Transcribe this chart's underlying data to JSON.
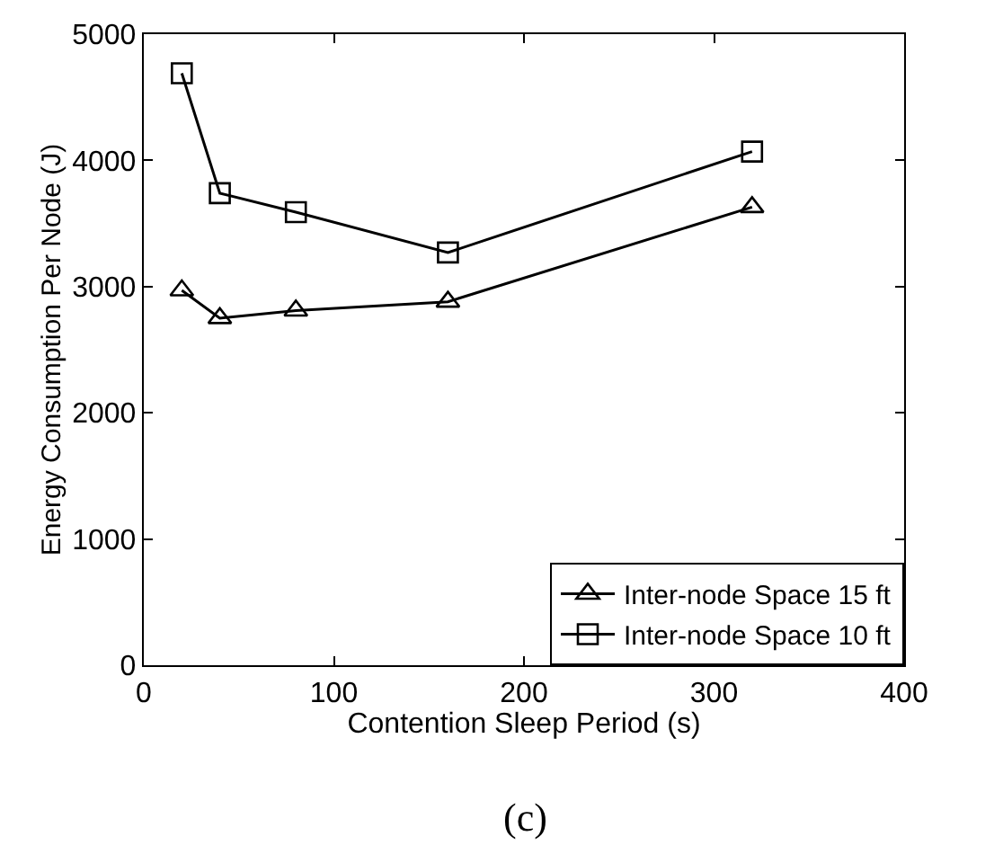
{
  "chart_data": {
    "type": "line",
    "xlabel": "Contention Sleep Period (s)",
    "ylabel": "Energy Consumption Per Node (J)",
    "x": [
      20,
      40,
      80,
      160,
      320
    ],
    "series": [
      {
        "name": "Inter-node Space 15 ft",
        "color": "#000000",
        "marker": "triangle",
        "values": [
          2970,
          2750,
          2810,
          2880,
          3630
        ]
      },
      {
        "name": "Inter-node Space 10 ft",
        "color": "#000000",
        "marker": "square",
        "values": [
          4690,
          3740,
          3590,
          3270,
          4070
        ]
      }
    ],
    "xlim": [
      0,
      400
    ],
    "xticks": [
      0,
      100,
      200,
      300,
      400
    ],
    "ylim": [
      0,
      5000
    ],
    "yticks": [
      0,
      1000,
      2000,
      3000,
      4000,
      5000
    ],
    "legend": "bottom right",
    "line_style": "solid",
    "annotations": [
      "(c)"
    ]
  }
}
